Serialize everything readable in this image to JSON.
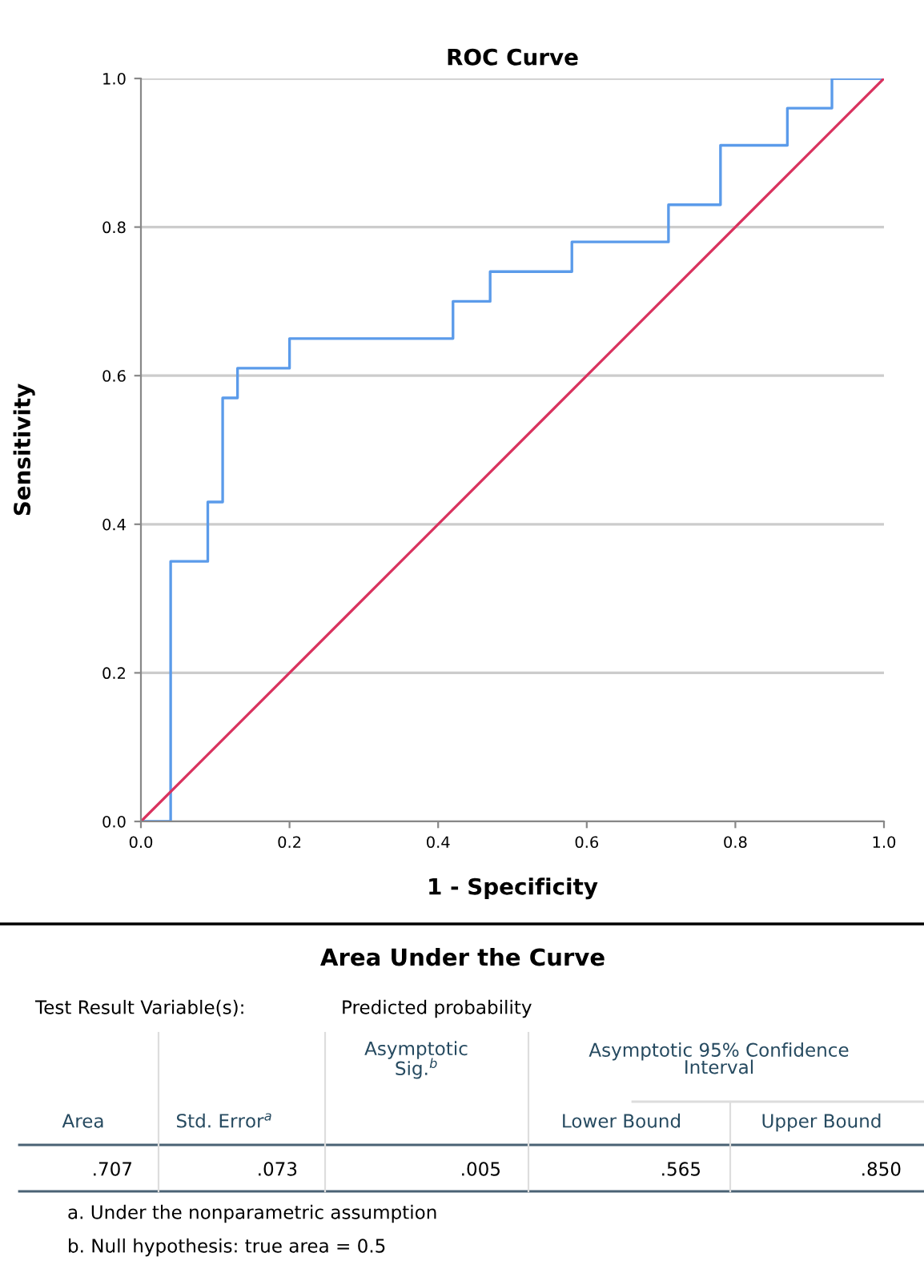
{
  "chart_data": {
    "type": "line",
    "title": "ROC Curve",
    "xlabel": "1 - Specificity",
    "ylabel": "Sensitivity",
    "series": [
      {
        "type": "step",
        "color": "#5b9bea",
        "x": [
          0,
          0.04,
          0.09,
          0.11,
          0.13,
          0.2,
          0.42,
          0.47,
          0.58,
          0.71,
          0.78,
          0.87,
          0.93,
          1
        ],
        "values": [
          0,
          0.35,
          0.43,
          0.57,
          0.61,
          0.65,
          0.7,
          0.74,
          0.78,
          0.83,
          0.91,
          0.96,
          1,
          1
        ]
      },
      {
        "color": "#d9325e",
        "x": [
          0,
          1
        ],
        "values": [
          0,
          1
        ]
      }
    ],
    "xlim": [
      0,
      1
    ],
    "ylim": [
      0,
      1
    ],
    "xticks": [
      {
        "value": 0,
        "label": "0.0"
      },
      {
        "value": 0.2,
        "label": "0.2"
      },
      {
        "value": 0.4,
        "label": "0.4"
      },
      {
        "value": 0.6,
        "label": "0.6"
      },
      {
        "value": 0.8,
        "label": "0.8"
      },
      {
        "value": 1,
        "label": "1.0"
      }
    ],
    "yticks": [
      {
        "value": 0,
        "label": "0.0"
      },
      {
        "value": 0.2,
        "label": "0.2"
      },
      {
        "value": 0.4,
        "label": "0.4"
      },
      {
        "value": 0.6,
        "label": "0.6"
      },
      {
        "value": 0.8,
        "label": "0.8"
      },
      {
        "value": 1,
        "label": "1.0"
      }
    ],
    "grid": "y",
    "legend": false,
    "annotations": [
      "Area Under the Curve",
      "Test Result Variable(s):",
      "Predicted probability",
      "Asymptotic\nSig.$^{b}$",
      "Asymptotic 95% Confidence\nInterval",
      "Area",
      "Std. Error$^{a}$",
      "Lower Bound",
      "Upper Bound",
      ".707",
      ".073",
      ".005",
      ".565",
      ".850",
      "a. Under the nonparametric assumption",
      "b. Null hypothesis: true area = 0.5"
    ]
  }
}
